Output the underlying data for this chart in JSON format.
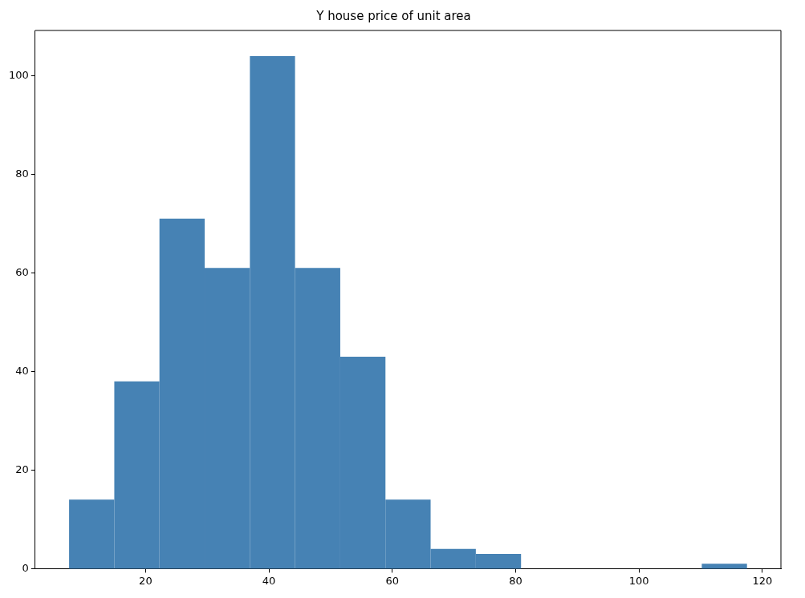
{
  "chart_data": {
    "type": "histogram",
    "title": "Y house price of unit area",
    "bins": [
      7.6,
      14.93,
      22.25,
      29.58,
      36.91,
      44.23,
      51.56,
      58.89,
      66.21,
      73.54,
      80.87,
      88.19,
      95.52,
      102.85,
      110.17,
      117.5
    ],
    "values": [
      14,
      38,
      71,
      61,
      104,
      61,
      43,
      14,
      4,
      3,
      0,
      0,
      0,
      0,
      1
    ],
    "color": "#4682b4",
    "xlim": [
      2.1,
      123
    ],
    "xticks": [
      20,
      40,
      60,
      80,
      100,
      120
    ],
    "ylim": [
      0,
      109.2
    ],
    "yticks": [
      0,
      20,
      40,
      60,
      80,
      100
    ],
    "grid": false,
    "legend": false
  }
}
